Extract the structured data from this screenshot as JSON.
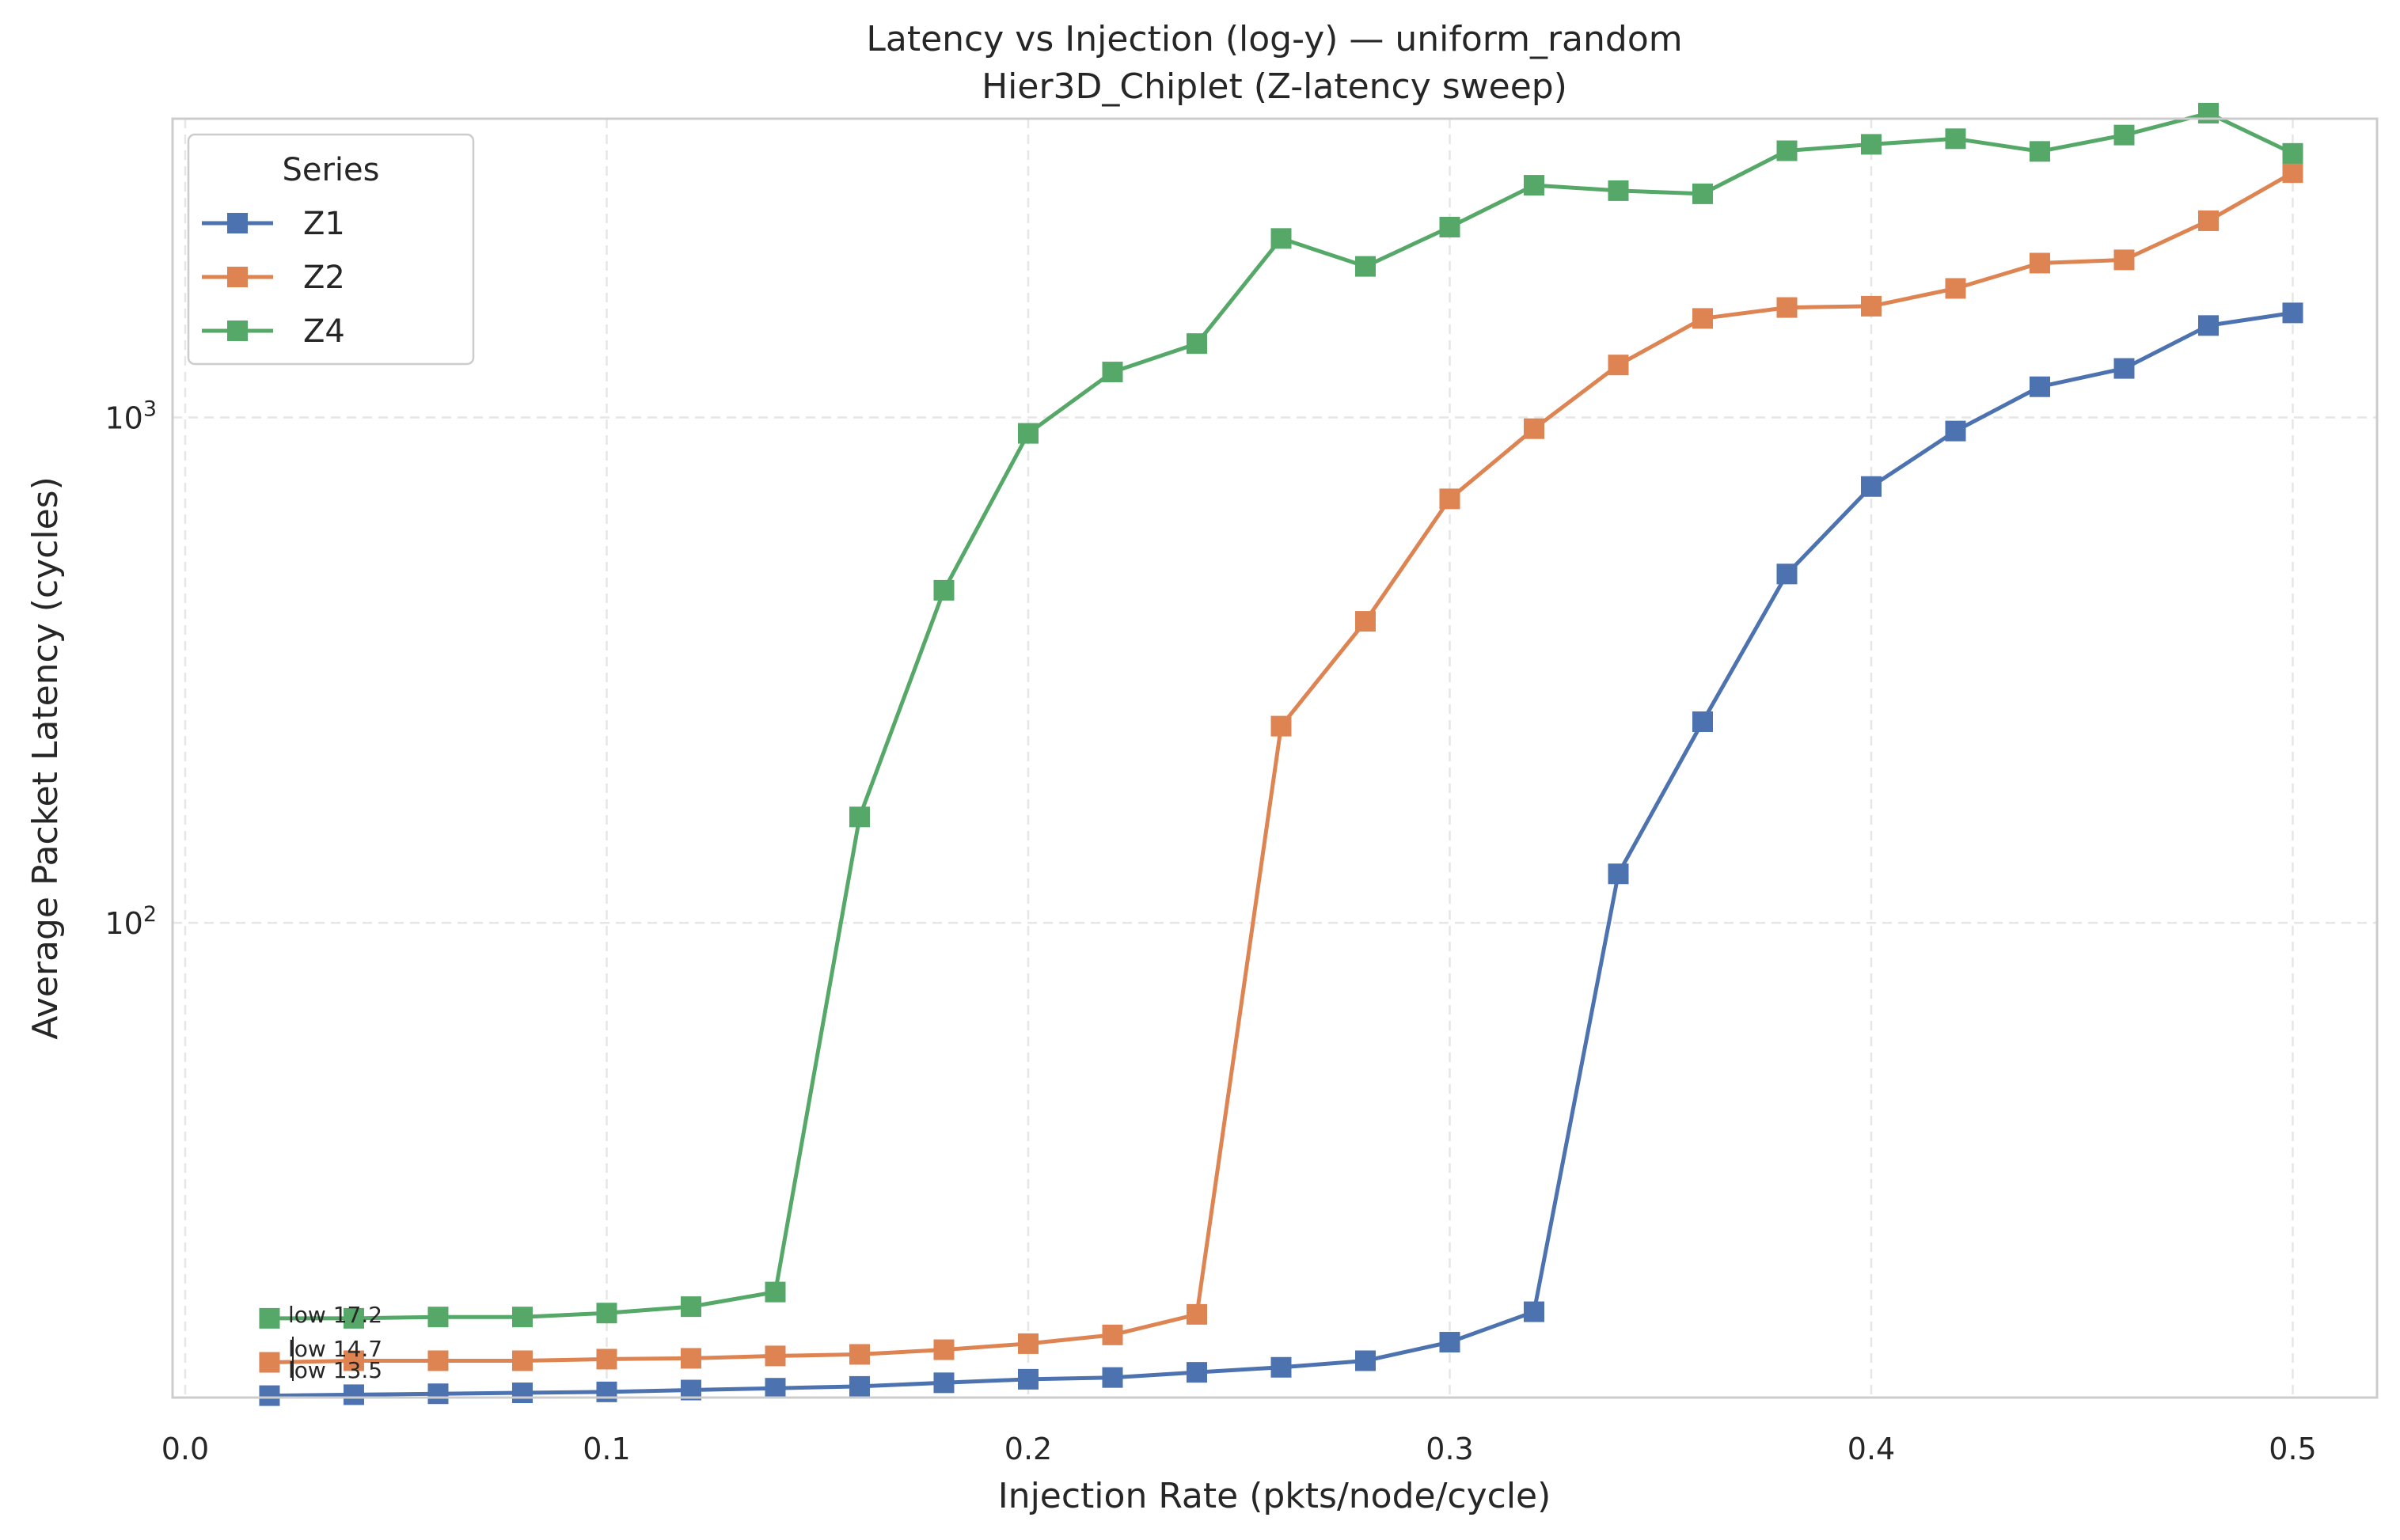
{
  "chart_data": {
    "type": "line",
    "title": "Latency vs Injection (log-y) — uniform_random",
    "subtitle": "Hier3D_Chiplet (Z-latency sweep)",
    "xlabel": "Injection Rate (pkts/node/cycle)",
    "ylabel": "Average Packet Latency (cycles)",
    "yscale": "log",
    "xlim": [
      -0.003,
      0.52
    ],
    "ylim": [
      11.5,
      3900
    ],
    "xticks": [
      0.0,
      0.1,
      0.2,
      0.3,
      0.4,
      0.5
    ],
    "xtick_labels": [
      "0.0",
      "0.1",
      "0.2",
      "0.3",
      "0.4",
      "0.5"
    ],
    "ytick_labels": [
      {
        "value": 100,
        "base": "10",
        "exp": "2"
      },
      {
        "value": 1000,
        "base": "10",
        "exp": "3"
      }
    ],
    "grid": true,
    "legend": {
      "title": "Series",
      "position": "top-left"
    },
    "x": [
      0.02,
      0.04,
      0.06,
      0.08,
      0.1,
      0.12,
      0.14,
      0.16,
      0.18,
      0.2,
      0.22,
      0.24,
      0.26,
      0.28,
      0.3,
      0.32,
      0.34,
      0.36,
      0.38,
      0.4,
      0.42,
      0.44,
      0.46,
      0.48,
      0.5
    ],
    "series": [
      {
        "name": "Z1",
        "color": "#4c72b0",
        "values": [
          11.6,
          11.65,
          11.7,
          11.75,
          11.8,
          11.9,
          12.0,
          12.1,
          12.3,
          12.5,
          12.6,
          12.9,
          13.2,
          13.6,
          14.8,
          17.0,
          125,
          250,
          490,
          730,
          940,
          1150,
          1250,
          1520,
          1610
        ]
      },
      {
        "name": "Z2",
        "color": "#dd8452",
        "values": [
          13.5,
          13.6,
          13.6,
          13.6,
          13.7,
          13.75,
          13.9,
          14.0,
          14.3,
          14.7,
          15.3,
          16.8,
          245,
          395,
          690,
          950,
          1270,
          1570,
          1650,
          1660,
          1800,
          2020,
          2050,
          2450,
          3050
        ]
      },
      {
        "name": "Z4",
        "color": "#55a868",
        "values": [
          16.5,
          16.5,
          16.6,
          16.6,
          16.9,
          17.4,
          18.6,
          162,
          455,
          930,
          1230,
          1400,
          2260,
          1990,
          2380,
          2880,
          2810,
          2770,
          3370,
          3470,
          3560,
          3360,
          3620,
          4000,
          3330
        ]
      }
    ],
    "annotations": [
      "low 17.2",
      "low 14.7",
      "low 13.5"
    ]
  }
}
